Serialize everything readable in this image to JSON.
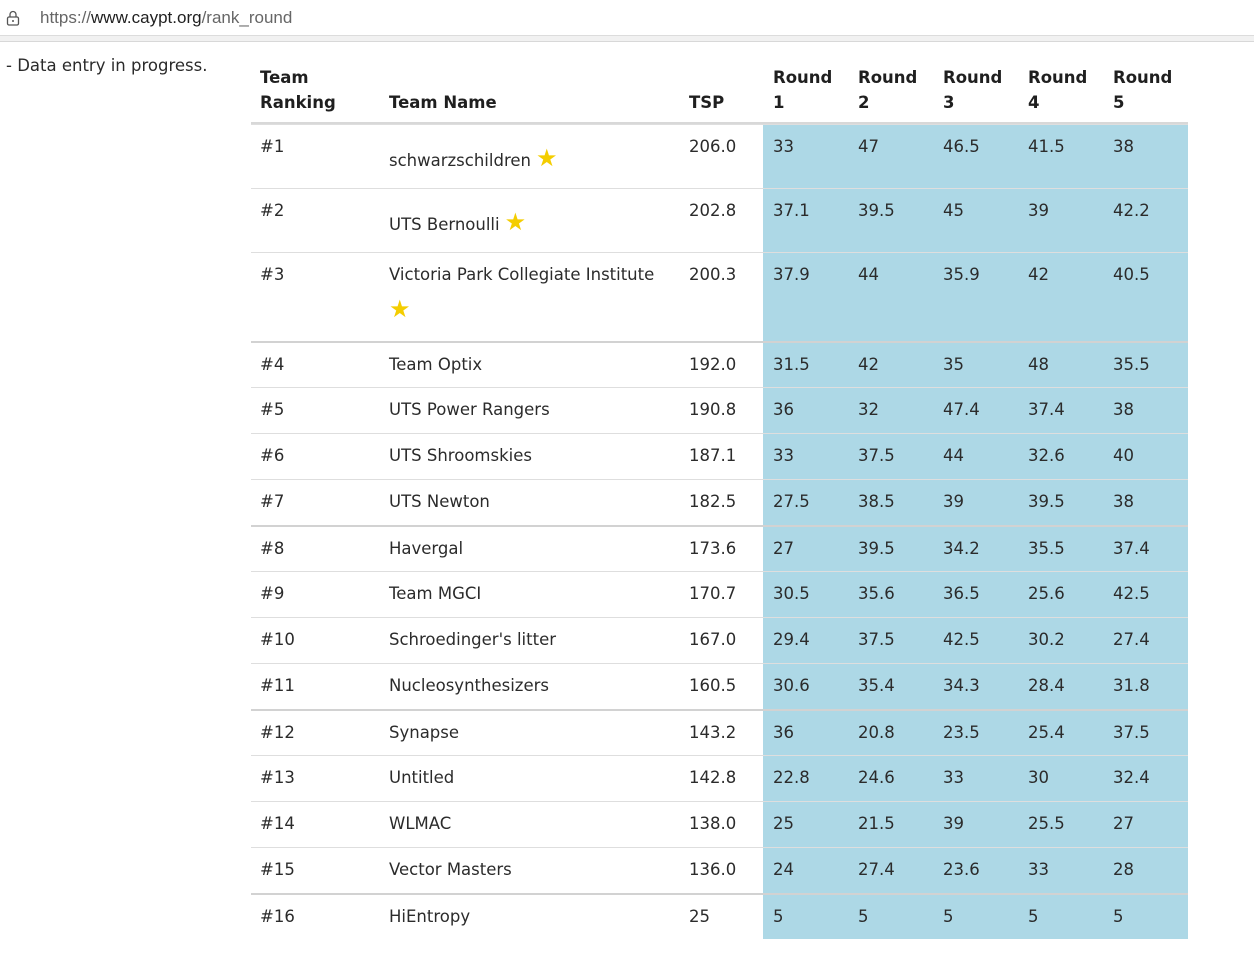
{
  "browser": {
    "url_scheme": "https://",
    "url_host": "www.caypt.org",
    "url_path": "/rank_round"
  },
  "note": "- Data entry in progress.",
  "table": {
    "headers": {
      "rank": "Team\nRanking",
      "name": "Team Name",
      "tsp": "TSP",
      "r1": "Round\n1",
      "r2": "Round\n2",
      "r3": "Round\n3",
      "r4": "Round\n4",
      "r5": "Round\n5"
    },
    "star_glyph": "★",
    "star_color": "#f4cd00",
    "shade_color": "#add8e6",
    "rows": [
      {
        "rank": "#1",
        "name": "schwarzschildren",
        "star": true,
        "tsp": "206.0",
        "r": [
          "33",
          "47",
          "46.5",
          "41.5",
          "38"
        ]
      },
      {
        "rank": "#2",
        "name": "UTS Bernoulli",
        "star": true,
        "tsp": "202.8",
        "r": [
          "37.1",
          "39.5",
          "45",
          "39",
          "42.2"
        ]
      },
      {
        "rank": "#3",
        "name": "Victoria Park Collegiate Institute",
        "star": true,
        "tsp": "200.3",
        "r": [
          "37.9",
          "44",
          "35.9",
          "42",
          "40.5"
        ]
      },
      {
        "rank": "#4",
        "name": "Team Optix",
        "star": false,
        "tsp": "192.0",
        "r": [
          "31.5",
          "42",
          "35",
          "48",
          "35.5"
        ]
      },
      {
        "rank": "#5",
        "name": "UTS Power Rangers",
        "star": false,
        "tsp": "190.8",
        "r": [
          "36",
          "32",
          "47.4",
          "37.4",
          "38"
        ]
      },
      {
        "rank": "#6",
        "name": "UTS Shroomskies",
        "star": false,
        "tsp": "187.1",
        "r": [
          "33",
          "37.5",
          "44",
          "32.6",
          "40"
        ]
      },
      {
        "rank": "#7",
        "name": "UTS Newton",
        "star": false,
        "tsp": "182.5",
        "r": [
          "27.5",
          "38.5",
          "39",
          "39.5",
          "38"
        ]
      },
      {
        "rank": "#8",
        "name": "Havergal",
        "star": false,
        "tsp": "173.6",
        "r": [
          "27",
          "39.5",
          "34.2",
          "35.5",
          "37.4"
        ]
      },
      {
        "rank": "#9",
        "name": "Team MGCI",
        "star": false,
        "tsp": "170.7",
        "r": [
          "30.5",
          "35.6",
          "36.5",
          "25.6",
          "42.5"
        ]
      },
      {
        "rank": "#10",
        "name": "Schroedinger's litter",
        "star": false,
        "tsp": "167.0",
        "r": [
          "29.4",
          "37.5",
          "42.5",
          "30.2",
          "27.4"
        ]
      },
      {
        "rank": "#11",
        "name": "Nucleosynthesizers",
        "star": false,
        "tsp": "160.5",
        "r": [
          "30.6",
          "35.4",
          "34.3",
          "28.4",
          "31.8"
        ]
      },
      {
        "rank": "#12",
        "name": "Synapse",
        "star": false,
        "tsp": "143.2",
        "r": [
          "36",
          "20.8",
          "23.5",
          "25.4",
          "37.5"
        ]
      },
      {
        "rank": "#13",
        "name": "Untitled",
        "star": false,
        "tsp": "142.8",
        "r": [
          "22.8",
          "24.6",
          "33",
          "30",
          "32.4"
        ]
      },
      {
        "rank": "#14",
        "name": "WLMAC",
        "star": false,
        "tsp": "138.0",
        "r": [
          "25",
          "21.5",
          "39",
          "25.5",
          "27"
        ]
      },
      {
        "rank": "#15",
        "name": "Vector Masters",
        "star": false,
        "tsp": "136.0",
        "r": [
          "24",
          "27.4",
          "23.6",
          "33",
          "28"
        ]
      },
      {
        "rank": "#16",
        "name": "HiEntropy",
        "star": false,
        "tsp": "25",
        "r": [
          "5",
          "5",
          "5",
          "5",
          "5"
        ]
      }
    ]
  }
}
